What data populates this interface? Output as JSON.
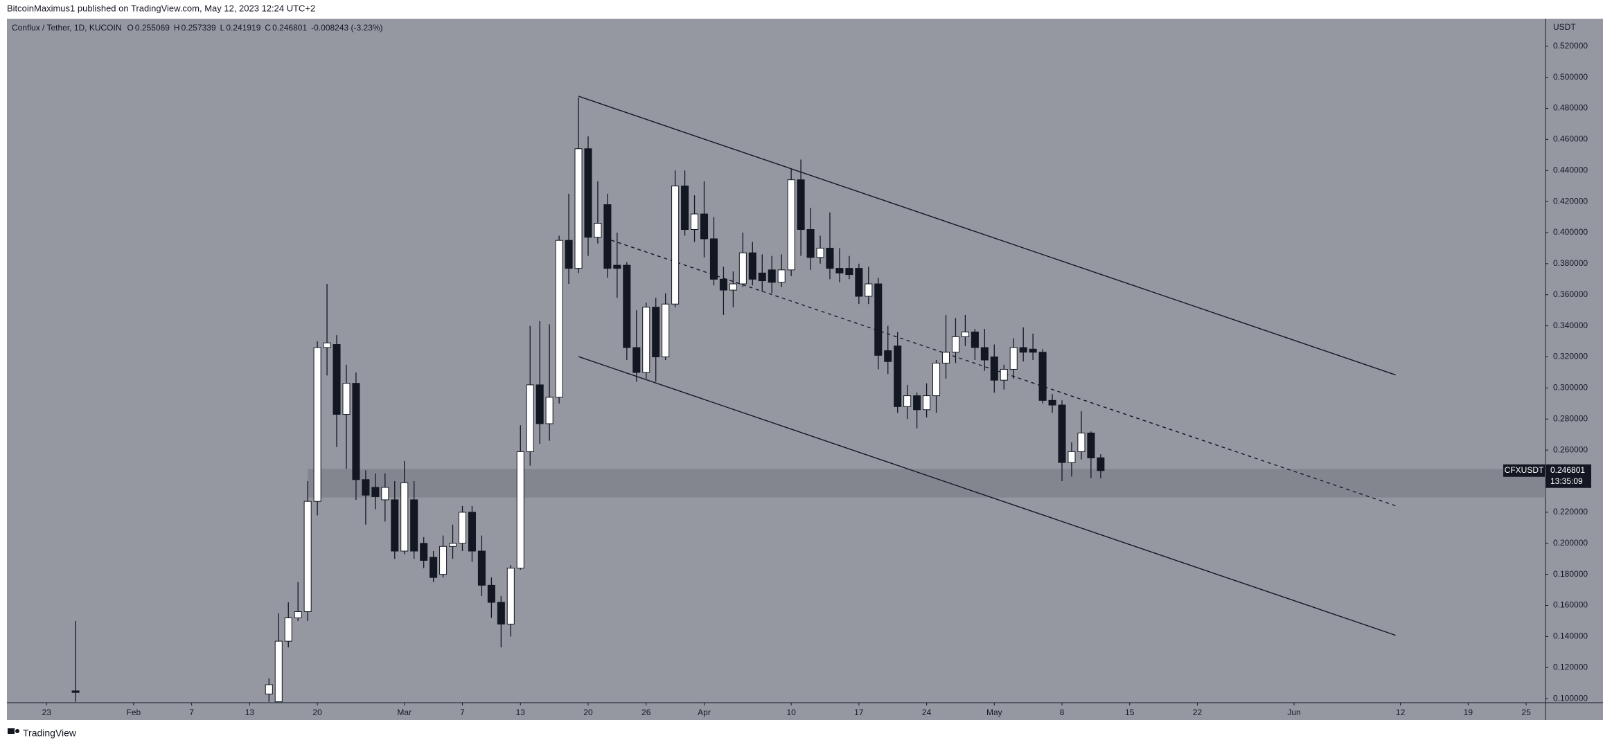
{
  "header": "BitcoinMaximus1 published on TradingView.com, May 12, 2023 12:24 UTC+2",
  "brand": "TradingView",
  "chart_data": {
    "type": "candlestick",
    "title": "Conflux / Tether, 1D, KUCOIN",
    "ohlc_legend": [
      {
        "label": "O",
        "value": 0.255069
      },
      {
        "label": "H",
        "value": 0.257339
      },
      {
        "label": "L",
        "value": 0.241919
      },
      {
        "label": "C",
        "value": 0.246801
      }
    ],
    "change_text": "-0.008243 (-3.23%)",
    "y_axis_unit": "USDT",
    "symbol_tag": "CFXUSDT",
    "last_price": 0.246801,
    "countdown": "13:35:09",
    "colors": {
      "background": "#9598a1",
      "up": "#ffffff",
      "down": "#131722",
      "wick": "#131722",
      "zone": "#7d8089"
    },
    "xlim": [
      18.9,
      178
    ],
    "ylim": [
      0.0974,
      0.5377
    ],
    "xticks": [
      23,
      {
        "value": 32,
        "label": "Feb"
      },
      {
        "value": 38,
        "label": "7"
      },
      {
        "value": 44,
        "label": "13"
      },
      {
        "value": 51,
        "label": "20"
      },
      {
        "value": 60,
        "label": "Mar"
      },
      {
        "value": 66,
        "label": "7"
      },
      {
        "value": 72,
        "label": "13"
      },
      {
        "value": 79,
        "label": "20"
      },
      {
        "value": 85,
        "label": "26"
      },
      {
        "value": 91,
        "label": "Apr"
      },
      {
        "value": 100,
        "label": "10"
      },
      {
        "value": 107,
        "label": "17"
      },
      {
        "value": 114,
        "label": "24"
      },
      {
        "value": 121,
        "label": "May"
      },
      {
        "value": 128,
        "label": "8"
      },
      {
        "value": 135,
        "label": "15"
      },
      {
        "value": 142,
        "label": "22"
      },
      {
        "value": 152,
        "label": "Jun"
      },
      {
        "value": 163,
        "label": "12"
      },
      {
        "value": 170,
        "label": "19"
      },
      {
        "value": 176,
        "label": "25"
      }
    ],
    "yticks": [
      {
        "value": 0.1,
        "label": "0.100000"
      },
      {
        "value": 0.12,
        "label": "0.120000"
      },
      {
        "value": 0.14,
        "label": "0.140000"
      },
      {
        "value": 0.16,
        "label": "0.160000"
      },
      {
        "value": 0.18,
        "label": "0.180000"
      },
      {
        "value": 0.2,
        "label": "0.200000"
      },
      {
        "value": 0.22,
        "label": "0.220000"
      },
      {
        "value": 0.24,
        "label": "0.240000"
      },
      {
        "value": 0.26,
        "label": "0.260000"
      },
      {
        "value": 0.28,
        "label": "0.280000"
      },
      {
        "value": 0.3,
        "label": "0.300000"
      },
      {
        "value": 0.32,
        "label": "0.320000"
      },
      {
        "value": 0.34,
        "label": "0.340000"
      },
      {
        "value": 0.36,
        "label": "0.360000"
      },
      {
        "value": 0.38,
        "label": "0.380000"
      },
      {
        "value": 0.4,
        "label": "0.400000"
      },
      {
        "value": 0.42,
        "label": "0.420000"
      },
      {
        "value": 0.44,
        "label": "0.440000"
      },
      {
        "value": 0.46,
        "label": "0.460000"
      },
      {
        "value": 0.48,
        "label": "0.480000"
      },
      {
        "value": 0.5,
        "label": "0.500000"
      },
      {
        "value": 0.52,
        "label": "0.520000"
      }
    ],
    "x": [
      26,
      46,
      47,
      48,
      49,
      50,
      51,
      52,
      53,
      54,
      55,
      56,
      57,
      58,
      59,
      60,
      61,
      62,
      63,
      64,
      65,
      66,
      67,
      68,
      69,
      70,
      71,
      72,
      73,
      74,
      75,
      76,
      77,
      78,
      79,
      80,
      81,
      82,
      83,
      84,
      85,
      86,
      87,
      88,
      89,
      90,
      91,
      92,
      93,
      94,
      95,
      96,
      97,
      98,
      99,
      100,
      101,
      102,
      103,
      104,
      105,
      106,
      107,
      108,
      109,
      110,
      111,
      112,
      113,
      114,
      115,
      116,
      117,
      118,
      119,
      120,
      121,
      122,
      123,
      124,
      125,
      126,
      127,
      128,
      129,
      130,
      131,
      132
    ],
    "open": [
      0.105,
      0.103,
      0.098,
      0.137,
      0.152,
      0.156,
      0.227,
      0.326,
      0.328,
      0.283,
      0.303,
      0.241,
      0.236,
      0.228,
      0.228,
      0.195,
      0.228,
      0.2,
      0.191,
      0.18,
      0.198,
      0.2,
      0.22,
      0.195,
      0.173,
      0.162,
      0.148,
      0.184,
      0.259,
      0.302,
      0.277,
      0.294,
      0.395,
      0.377,
      0.454,
      0.397,
      0.418,
      0.379,
      0.379,
      0.326,
      0.31,
      0.352,
      0.32,
      0.354,
      0.43,
      0.402,
      0.412,
      0.396,
      0.37,
      0.363,
      0.367,
      0.387,
      0.374,
      0.376,
      0.368,
      0.376,
      0.434,
      0.402,
      0.384,
      0.39,
      0.377,
      0.377,
      0.377,
      0.359,
      0.367,
      0.324,
      0.327,
      0.288,
      0.295,
      0.286,
      0.295,
      0.316,
      0.323,
      0.333,
      0.336,
      0.326,
      0.32,
      0.305,
      0.312,
      0.326,
      0.325,
      0.323,
      0.292,
      0.289,
      0.252,
      0.259,
      0.271,
      0.255069
    ],
    "high": [
      0.15,
      0.113,
      0.155,
      0.162,
      0.175,
      0.24,
      0.33,
      0.367,
      0.334,
      0.315,
      0.31,
      0.247,
      0.245,
      0.245,
      0.24,
      0.253,
      0.24,
      0.204,
      0.195,
      0.205,
      0.212,
      0.224,
      0.224,
      0.205,
      0.178,
      0.166,
      0.186,
      0.276,
      0.34,
      0.343,
      0.341,
      0.398,
      0.425,
      0.487,
      0.462,
      0.433,
      0.425,
      0.4,
      0.381,
      0.35,
      0.355,
      0.358,
      0.361,
      0.44,
      0.44,
      0.424,
      0.433,
      0.41,
      0.378,
      0.375,
      0.4,
      0.394,
      0.386,
      0.385,
      0.386,
      0.441,
      0.447,
      0.416,
      0.398,
      0.413,
      0.39,
      0.385,
      0.38,
      0.378,
      0.371,
      0.34,
      0.336,
      0.302,
      0.297,
      0.303,
      0.318,
      0.347,
      0.345,
      0.347,
      0.338,
      0.338,
      0.328,
      0.315,
      0.332,
      0.339,
      0.335,
      0.325,
      0.296,
      0.292,
      0.265,
      0.285,
      0.272,
      0.257339
    ],
    "low": [
      0.098,
      0.098,
      0.098,
      0.133,
      0.15,
      0.15,
      0.218,
      0.308,
      0.262,
      0.248,
      0.228,
      0.212,
      0.222,
      0.214,
      0.19,
      0.193,
      0.19,
      0.184,
      0.175,
      0.178,
      0.19,
      0.195,
      0.188,
      0.166,
      0.152,
      0.133,
      0.14,
      0.183,
      0.25,
      0.264,
      0.266,
      0.29,
      0.367,
      0.374,
      0.385,
      0.393,
      0.371,
      0.358,
      0.318,
      0.304,
      0.306,
      0.304,
      0.318,
      0.352,
      0.398,
      0.394,
      0.384,
      0.366,
      0.347,
      0.352,
      0.365,
      0.366,
      0.362,
      0.361,
      0.365,
      0.372,
      0.385,
      0.376,
      0.38,
      0.37,
      0.368,
      0.37,
      0.354,
      0.354,
      0.312,
      0.309,
      0.284,
      0.28,
      0.274,
      0.281,
      0.284,
      0.306,
      0.316,
      0.327,
      0.318,
      0.311,
      0.297,
      0.299,
      0.306,
      0.317,
      0.318,
      0.29,
      0.284,
      0.24,
      0.243,
      0.254,
      0.242,
      0.241919
    ],
    "close": [
      0.104,
      0.109,
      0.137,
      0.152,
      0.156,
      0.227,
      0.326,
      0.329,
      0.283,
      0.303,
      0.241,
      0.231,
      0.23,
      0.236,
      0.195,
      0.239,
      0.195,
      0.189,
      0.178,
      0.198,
      0.2,
      0.22,
      0.195,
      0.173,
      0.162,
      0.148,
      0.184,
      0.259,
      0.302,
      0.277,
      0.294,
      0.395,
      0.377,
      0.454,
      0.397,
      0.406,
      0.377,
      0.377,
      0.326,
      0.31,
      0.352,
      0.32,
      0.354,
      0.43,
      0.402,
      0.412,
      0.396,
      0.37,
      0.363,
      0.367,
      0.387,
      0.37,
      0.369,
      0.368,
      0.376,
      0.434,
      0.402,
      0.384,
      0.39,
      0.377,
      0.374,
      0.373,
      0.359,
      0.367,
      0.321,
      0.317,
      0.288,
      0.295,
      0.286,
      0.295,
      0.316,
      0.323,
      0.333,
      0.336,
      0.326,
      0.318,
      0.305,
      0.312,
      0.326,
      0.323,
      0.323,
      0.292,
      0.289,
      0.252,
      0.259,
      0.271,
      0.255,
      0.246801
    ],
    "trendlines": [
      {
        "style": "solid",
        "x": [
          78.0,
          162.5
        ],
        "y": [
          0.4878,
          0.3084
        ]
      },
      {
        "style": "solid",
        "x": [
          78.0,
          162.5
        ],
        "y": [
          0.3202,
          0.1408
        ]
      },
      {
        "style": "dashed",
        "x": [
          81.4,
          162.5
        ],
        "y": [
          0.3951,
          0.2242
        ]
      }
    ],
    "zone": {
      "x0": 50,
      "low": 0.2295,
      "high": 0.2479
    }
  }
}
